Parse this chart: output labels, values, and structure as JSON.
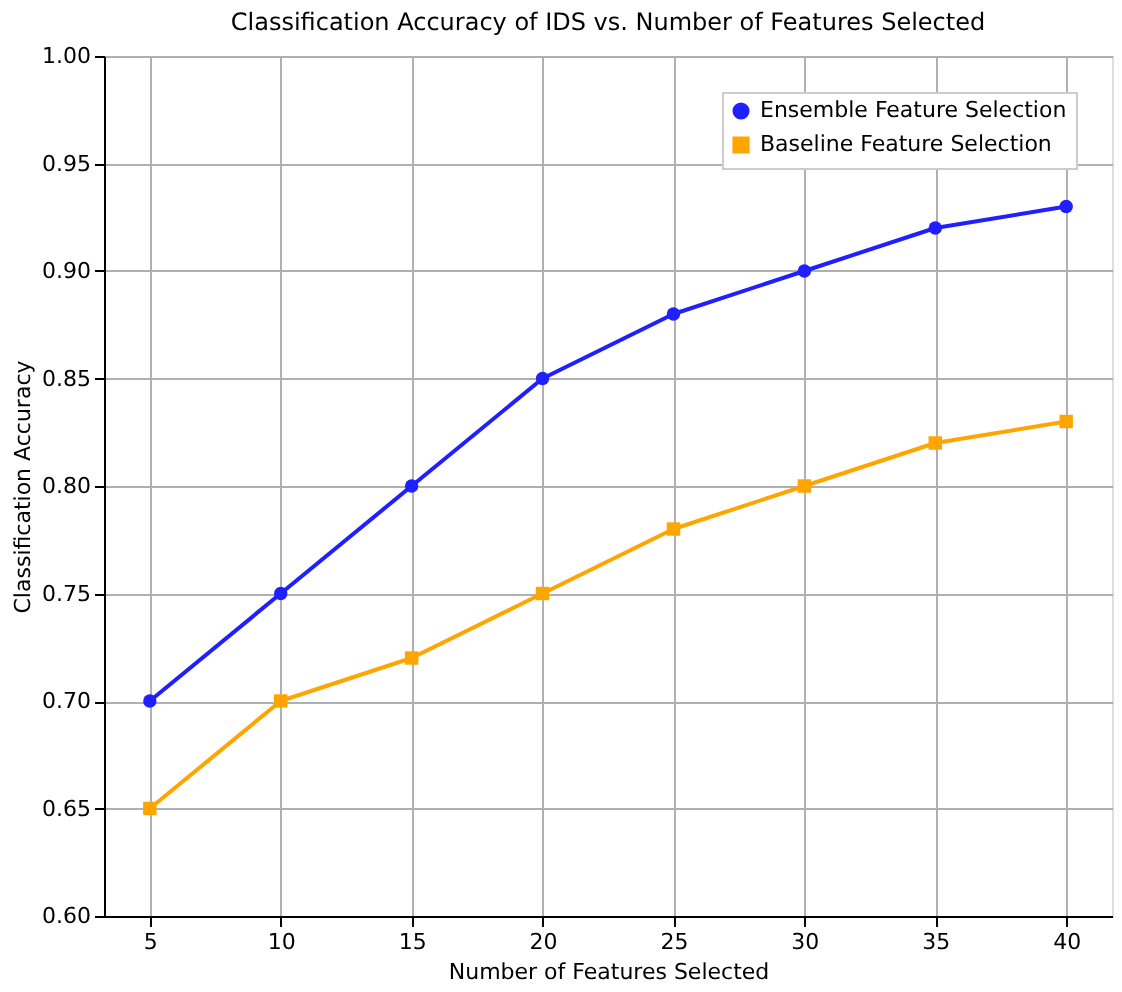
{
  "chart_data": {
    "type": "line",
    "title": "Classification Accuracy of IDS vs. Number of Features Selected",
    "xlabel": "Number of Features Selected",
    "ylabel": "Classification Accuracy",
    "x": [
      5,
      10,
      15,
      20,
      25,
      30,
      35,
      40
    ],
    "series": [
      {
        "name": "Ensemble Feature Selection",
        "color": "#1f1fff",
        "marker": "circle",
        "values": [
          0.7,
          0.75,
          0.8,
          0.85,
          0.88,
          0.9,
          0.92,
          0.93
        ]
      },
      {
        "name": "Baseline Feature Selection",
        "color": "#ffa500",
        "marker": "square",
        "values": [
          0.65,
          0.7,
          0.72,
          0.75,
          0.78,
          0.8,
          0.82,
          0.83
        ]
      }
    ],
    "xlim": [
      3.25,
      41.75
    ],
    "xticks": [
      5,
      10,
      15,
      20,
      25,
      30,
      35,
      40
    ],
    "ylim": [
      0.6,
      1.0
    ],
    "yticks": [
      {
        "value": 0.6,
        "label": "0.60"
      },
      0.65,
      {
        "value": 0.7,
        "label": "0.70"
      },
      0.75,
      {
        "value": 0.8,
        "label": "0.80"
      },
      0.85,
      {
        "value": 0.9,
        "label": "0.90"
      },
      0.95,
      {
        "value": 1.0,
        "label": "1.00"
      }
    ],
    "grid": true,
    "legend": "top right",
    "line_style": "solid"
  }
}
